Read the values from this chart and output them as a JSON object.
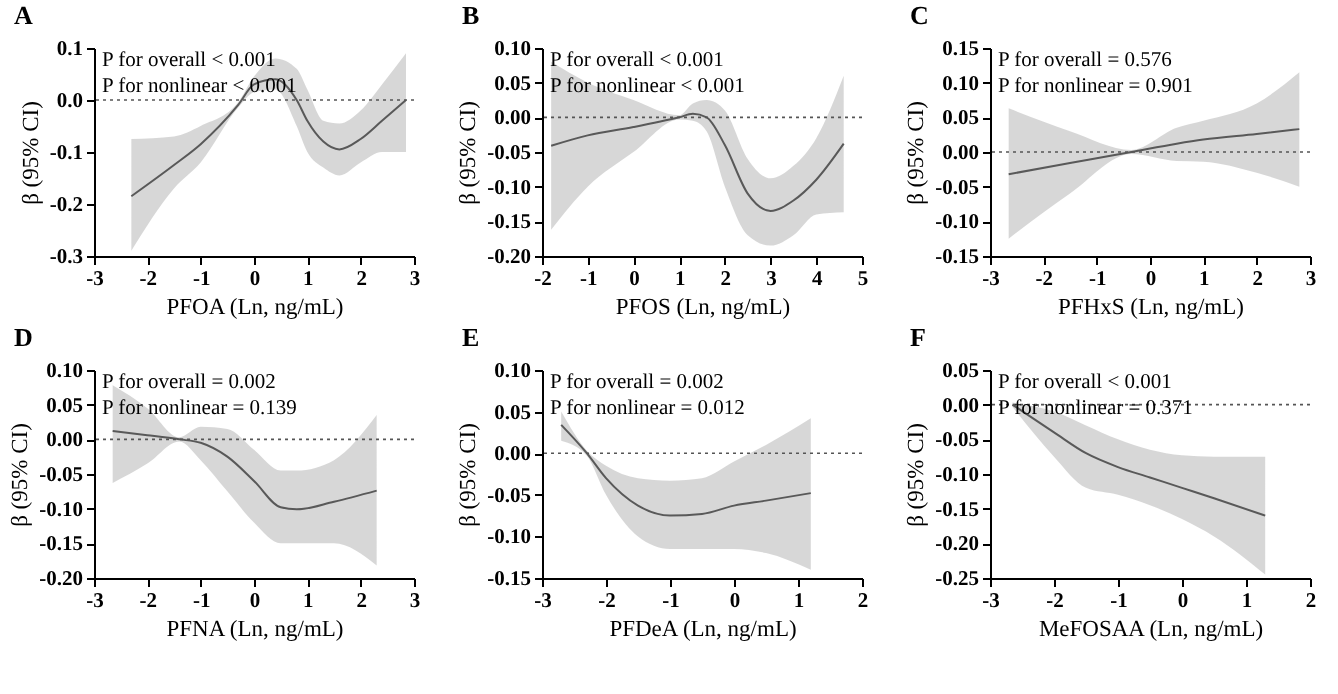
{
  "chart_data": [
    {
      "type": "line",
      "title": "A",
      "xlabel": "PFOA (Ln, ng/mL)",
      "ylabel": "β (95% CI)",
      "annotations": [
        "P for overall < 0.001",
        "P for nonlinear < 0.001"
      ],
      "xlim": [
        -3,
        3
      ],
      "xticks": [
        -3,
        -2,
        -1,
        0,
        1,
        2,
        3
      ],
      "ylim": [
        -0.3,
        0.1
      ],
      "yticks": [
        {
          "value": -0.3,
          "label": "-0.3"
        },
        {
          "value": -0.2,
          "label": "-0.2"
        },
        {
          "value": -0.1,
          "label": "-0.1"
        },
        {
          "value": 0,
          "label": "0.0"
        },
        {
          "value": 0.1,
          "label": "0.1"
        }
      ],
      "grid": false,
      "ref_lines": [
        {
          "axis": "y",
          "value": 0,
          "line_style": "dotted"
        }
      ],
      "series": [
        {
          "color": "#595959",
          "x": [
            -2.3,
            -1.5,
            -1,
            -0.3,
            0,
            0.4,
            0.8,
            1.0,
            1.3,
            1.6,
            2.0,
            2.4,
            2.85
          ],
          "values": [
            -0.185,
            -0.125,
            -0.085,
            -0.01,
            0.03,
            0.04,
            0.0,
            -0.04,
            -0.08,
            -0.095,
            -0.075,
            -0.04,
            0.0
          ],
          "lower": [
            -0.29,
            -0.17,
            -0.12,
            -0.015,
            0.015,
            0.02,
            -0.05,
            -0.1,
            -0.13,
            -0.145,
            -0.12,
            -0.1,
            -0.1
          ],
          "upper": [
            -0.075,
            -0.07,
            -0.05,
            -0.005,
            0.045,
            0.08,
            0.06,
            0.02,
            -0.04,
            -0.045,
            -0.02,
            0.03,
            0.09
          ]
        }
      ]
    },
    {
      "type": "line",
      "title": "B",
      "xlabel": "PFOS (Ln, ng/mL)",
      "ylabel": "β (95% CI)",
      "annotations": [
        "P for overall < 0.001",
        "P for nonlinear < 0.001"
      ],
      "xlim": [
        -2,
        5
      ],
      "xticks": [
        -2,
        -1,
        0,
        1,
        2,
        3,
        4,
        5
      ],
      "ylim": [
        -0.2,
        0.1
      ],
      "yticks": [
        {
          "value": -0.2,
          "label": "-0.20"
        },
        {
          "value": -0.15,
          "label": "-0.15"
        },
        {
          "value": -0.1,
          "label": "-0.10"
        },
        {
          "value": -0.05,
          "label": "-0.05"
        },
        {
          "value": 0,
          "label": "0.00"
        },
        {
          "value": 0.05,
          "label": "0.05"
        },
        {
          "value": 0.1,
          "label": "0.10"
        }
      ],
      "grid": false,
      "ref_lines": [
        {
          "axis": "y",
          "value": 0,
          "line_style": "dotted"
        }
      ],
      "series": [
        {
          "color": "#595959",
          "x": [
            -1.8,
            -1,
            0,
            1,
            1.3,
            1.6,
            2,
            2.5,
            3,
            3.5,
            4,
            4.6
          ],
          "values": [
            -0.041,
            -0.026,
            -0.014,
            0.0,
            0.005,
            0.0,
            -0.04,
            -0.11,
            -0.135,
            -0.12,
            -0.09,
            -0.038
          ],
          "lower": [
            -0.162,
            -0.1,
            -0.05,
            -0.003,
            -0.005,
            -0.02,
            -0.1,
            -0.17,
            -0.185,
            -0.17,
            -0.14,
            -0.137
          ],
          "upper": [
            0.08,
            0.05,
            0.025,
            0.003,
            0.02,
            0.025,
            0.01,
            -0.06,
            -0.088,
            -0.07,
            -0.03,
            0.06
          ]
        }
      ]
    },
    {
      "type": "line",
      "title": "C",
      "xlabel": "PFHxS (Ln, ng/mL)",
      "ylabel": "β (95% CI)",
      "annotations": [
        "P for overall = 0.576",
        "P for nonlinear = 0.901"
      ],
      "xlim": [
        -3,
        3
      ],
      "xticks": [
        -3,
        -2,
        -1,
        0,
        1,
        2,
        3
      ],
      "ylim": [
        -0.15,
        0.15
      ],
      "yticks": [
        {
          "value": -0.15,
          "label": "-0.15"
        },
        {
          "value": -0.1,
          "label": "-0.10"
        },
        {
          "value": -0.05,
          "label": "-0.05"
        },
        {
          "value": 0,
          "label": "0.00"
        },
        {
          "value": 0.05,
          "label": "0.05"
        },
        {
          "value": 0.1,
          "label": "0.10"
        },
        {
          "value": 0.15,
          "label": "0.15"
        }
      ],
      "grid": false,
      "ref_lines": [
        {
          "axis": "y",
          "value": 0,
          "line_style": "dotted"
        }
      ],
      "series": [
        {
          "color": "#595959",
          "x": [
            -2.65,
            -1.5,
            -0.35,
            0.5,
            1,
            2,
            2.8
          ],
          "values": [
            -0.032,
            -0.016,
            0.0,
            0.012,
            0.018,
            0.026,
            0.033
          ],
          "lower": [
            -0.125,
            -0.06,
            -0.003,
            -0.013,
            -0.014,
            -0.03,
            -0.05
          ],
          "upper": [
            0.063,
            0.03,
            0.003,
            0.035,
            0.045,
            0.07,
            0.115
          ]
        }
      ]
    },
    {
      "type": "line",
      "title": "D",
      "xlabel": "PFNA (Ln, ng/mL)",
      "ylabel": "β (95% CI)",
      "annotations": [
        "P for overall = 0.002",
        "P for nonlinear = 0.139"
      ],
      "xlim": [
        -3,
        3
      ],
      "xticks": [
        -3,
        -2,
        -1,
        0,
        1,
        2,
        3
      ],
      "ylim": [
        -0.2,
        0.1
      ],
      "yticks": [
        {
          "value": -0.2,
          "label": "-0.20"
        },
        {
          "value": -0.15,
          "label": "-0.15"
        },
        {
          "value": -0.1,
          "label": "-0.10"
        },
        {
          "value": -0.05,
          "label": "-0.05"
        },
        {
          "value": 0,
          "label": "0.00"
        },
        {
          "value": 0.05,
          "label": "0.05"
        },
        {
          "value": 0.1,
          "label": "0.10"
        }
      ],
      "grid": false,
      "ref_lines": [
        {
          "axis": "y",
          "value": 0,
          "line_style": "dotted"
        }
      ],
      "series": [
        {
          "color": "#595959",
          "x": [
            -2.65,
            -2,
            -1.4,
            -1,
            -0.5,
            0,
            0.5,
            0.8,
            1.5,
            2.3
          ],
          "values": [
            0.012,
            0.006,
            0.0,
            -0.005,
            -0.025,
            -0.06,
            -0.098,
            -0.101,
            -0.09,
            -0.074
          ],
          "lower": [
            -0.063,
            -0.035,
            -0.003,
            -0.03,
            -0.075,
            -0.12,
            -0.15,
            -0.15,
            -0.15,
            -0.182
          ],
          "upper": [
            0.078,
            0.045,
            0.003,
            0.018,
            0.015,
            -0.015,
            -0.045,
            -0.045,
            -0.03,
            0.035
          ]
        }
      ]
    },
    {
      "type": "line",
      "title": "E",
      "xlabel": "PFDeA (Ln, ng/mL)",
      "ylabel": "β (95% CI)",
      "annotations": [
        "P for overall = 0.002",
        "P for nonlinear = 0.012"
      ],
      "xlim": [
        -3,
        2
      ],
      "xticks": [
        -3,
        -2,
        -1,
        0,
        1,
        2
      ],
      "ylim": [
        -0.15,
        0.1
      ],
      "yticks": [
        {
          "value": -0.15,
          "label": "-0.15"
        },
        {
          "value": -0.1,
          "label": "-0.10"
        },
        {
          "value": -0.05,
          "label": "-0.05"
        },
        {
          "value": 0,
          "label": "0.00"
        },
        {
          "value": 0.05,
          "label": "0.05"
        },
        {
          "value": 0.1,
          "label": "0.10"
        }
      ],
      "grid": false,
      "ref_lines": [
        {
          "axis": "y",
          "value": 0,
          "line_style": "dotted"
        }
      ],
      "series": [
        {
          "color": "#595959",
          "x": [
            -2.7,
            -2.3,
            -2,
            -1.5,
            -1,
            -0.5,
            0,
            0.5,
            1.2
          ],
          "values": [
            0.034,
            0.0,
            -0.03,
            -0.063,
            -0.075,
            -0.073,
            -0.063,
            -0.057,
            -0.048
          ],
          "lower": [
            0.015,
            -0.003,
            -0.05,
            -0.1,
            -0.115,
            -0.115,
            -0.115,
            -0.12,
            -0.14
          ],
          "upper": [
            0.05,
            0.003,
            -0.015,
            -0.03,
            -0.033,
            -0.03,
            -0.01,
            0.01,
            0.042
          ]
        }
      ]
    },
    {
      "type": "line",
      "title": "F",
      "xlabel": "MeFOSAA (Ln, ng/mL)",
      "ylabel": "β (95% CI)",
      "annotations": [
        "P for overall < 0.001",
        "P for nonlinear = 0.371"
      ],
      "xlim": [
        -3,
        2
      ],
      "xticks": [
        -3,
        -2,
        -1,
        0,
        1,
        2
      ],
      "ylim": [
        -0.25,
        0.05
      ],
      "yticks": [
        {
          "value": -0.25,
          "label": "-0.25"
        },
        {
          "value": -0.2,
          "label": "-0.20"
        },
        {
          "value": -0.15,
          "label": "-0.15"
        },
        {
          "value": -0.1,
          "label": "-0.10"
        },
        {
          "value": -0.05,
          "label": "-0.05"
        },
        {
          "value": 0,
          "label": "0.00"
        },
        {
          "value": 0.05,
          "label": "0.05"
        }
      ],
      "grid": false,
      "ref_lines": [
        {
          "axis": "y",
          "value": 0,
          "line_style": "dotted"
        }
      ],
      "series": [
        {
          "color": "#595959",
          "x": [
            -2.65,
            -2,
            -1.5,
            -1,
            -0.5,
            0,
            0.5,
            1.3
          ],
          "values": [
            0.0,
            -0.04,
            -0.07,
            -0.09,
            -0.105,
            -0.12,
            -0.135,
            -0.16
          ],
          "lower": [
            -0.003,
            -0.075,
            -0.12,
            -0.13,
            -0.145,
            -0.165,
            -0.19,
            -0.245
          ],
          "upper": [
            0.003,
            -0.01,
            -0.03,
            -0.05,
            -0.065,
            -0.073,
            -0.075,
            -0.075
          ]
        }
      ]
    }
  ]
}
